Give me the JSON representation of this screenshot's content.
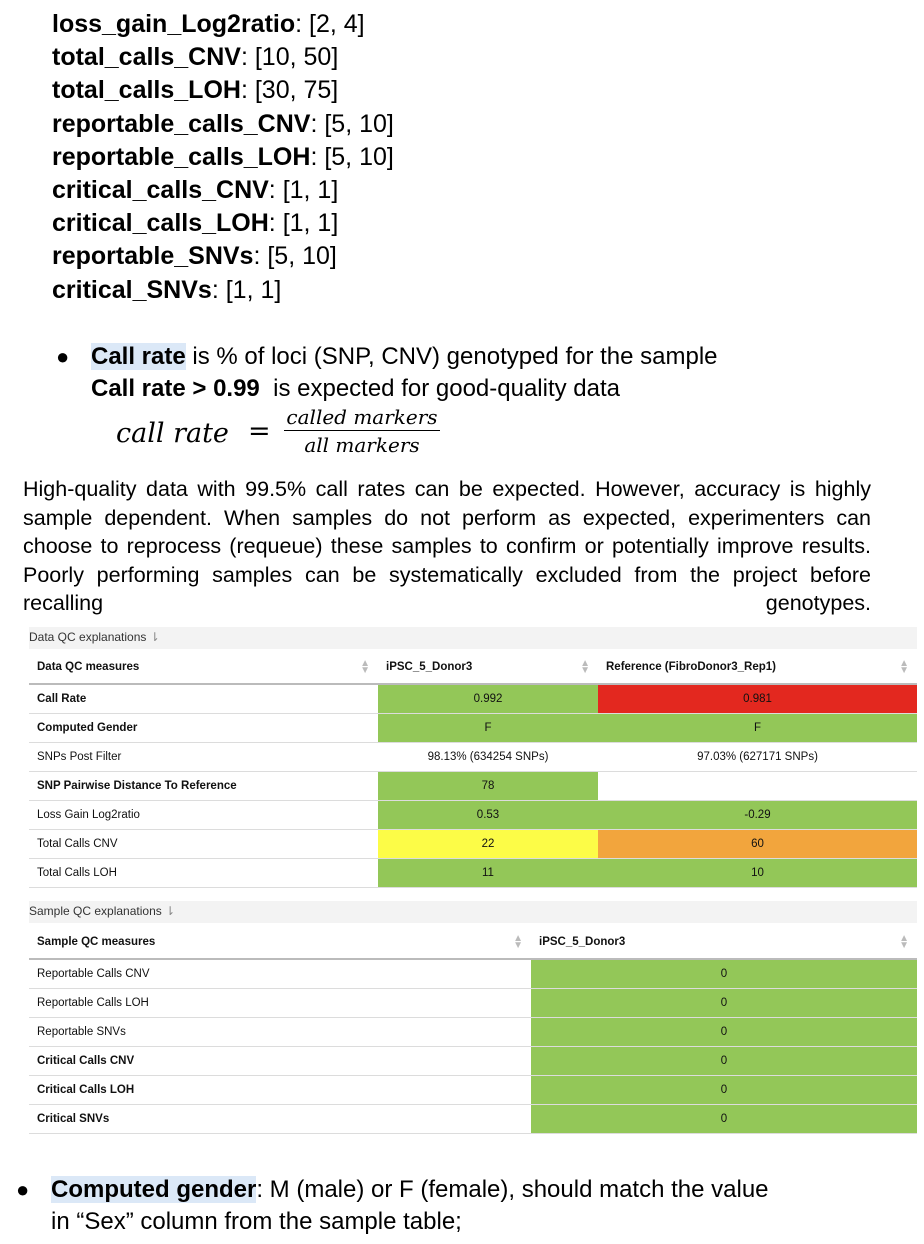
{
  "thresholds": [
    {
      "key": "loss_gain_Log2ratio",
      "value": ": [2, 4]"
    },
    {
      "key": "total_calls_CNV",
      "value": ": [10, 50]"
    },
    {
      "key": "total_calls_LOH",
      "value": ": [30, 75]"
    },
    {
      "key": "reportable_calls_CNV",
      "value": ": [5, 10]"
    },
    {
      "key": "reportable_calls_LOH",
      "value": ": [5, 10]"
    },
    {
      "key": "critical_calls_CNV",
      "value": ": [1, 1]"
    },
    {
      "key": "critical_calls_LOH",
      "value": ": [1, 1]"
    },
    {
      "key": "reportable_SNVs",
      "value": ": [5, 10]"
    },
    {
      "key": "critical_SNVs",
      "value": ": [1, 1]"
    }
  ],
  "call_rate": {
    "term": "Call rate",
    "line1_rest": " is % of loci (SNP, CNV) genotyped for the sample",
    "line2_bold": "Call rate > 0.99",
    "line2_rest": "  is expected for good-quality data",
    "formula_lhs": "call rate",
    "formula_eq": "=",
    "formula_num": "called markers",
    "formula_den": "all markers"
  },
  "paragraph": "High-quality data with 99.5% call rates can be expected. However, accuracy is highly sample dependent. When samples do not perform as expected, experimenters can choose to reprocess (requeue) these samples to confirm or potentially improve results. Poorly performing samples can be systematically excluded from the project before recalling genotypes.",
  "data_qc": {
    "section_title": "Data QC explanations",
    "section_arrow": "⇂",
    "headers": [
      "Data QC measures",
      "iPSC_5_Donor3",
      "Reference (FibroDonor3_Rep1)"
    ],
    "rows": [
      {
        "label": "Call Rate",
        "bold": true,
        "v1": "0.992",
        "c1": "#93c758",
        "v2": "0.981",
        "c2": "#e3281f"
      },
      {
        "label": "Computed Gender",
        "bold": true,
        "v1": "F",
        "c1": "#93c758",
        "v2": "F",
        "c2": "#93c758"
      },
      {
        "label": "SNPs Post Filter",
        "bold": false,
        "v1": "98.13% (634254 SNPs)",
        "c1": "",
        "v2": "97.03% (627171 SNPs)",
        "c2": ""
      },
      {
        "label": "SNP Pairwise Distance To Reference",
        "bold": true,
        "v1": "78",
        "c1": "#93c758",
        "v2": "",
        "c2": ""
      },
      {
        "label": "Loss Gain Log2ratio",
        "bold": false,
        "v1": "0.53",
        "c1": "#93c758",
        "v2": "-0.29",
        "c2": "#93c758"
      },
      {
        "label": "Total Calls CNV",
        "bold": false,
        "v1": "22",
        "c1": "#fcfc47",
        "v2": "60",
        "c2": "#f2a53d"
      },
      {
        "label": "Total Calls LOH",
        "bold": false,
        "v1": "11",
        "c1": "#93c758",
        "v2": "10",
        "c2": "#93c758"
      }
    ]
  },
  "sample_qc": {
    "section_title": "Sample QC explanations",
    "section_arrow": "⇂",
    "headers": [
      "Sample QC measures",
      "iPSC_5_Donor3"
    ],
    "rows": [
      {
        "label": "Reportable Calls CNV",
        "bold": false,
        "v1": "0",
        "c1": "#93c758"
      },
      {
        "label": "Reportable Calls LOH",
        "bold": false,
        "v1": "0",
        "c1": "#93c758"
      },
      {
        "label": "Reportable SNVs",
        "bold": false,
        "v1": "0",
        "c1": "#93c758"
      },
      {
        "label": "Critical Calls CNV",
        "bold": true,
        "v1": "0",
        "c1": "#93c758"
      },
      {
        "label": "Critical Calls LOH",
        "bold": true,
        "v1": "0",
        "c1": "#93c758"
      },
      {
        "label": "Critical SNVs",
        "bold": true,
        "v1": "0",
        "c1": "#93c758"
      }
    ]
  },
  "gender": {
    "term": "Computed gender",
    "rest_line1": ": M (male) or F (female), should match the value",
    "line2": "in “Sex” column from the sample table;"
  }
}
